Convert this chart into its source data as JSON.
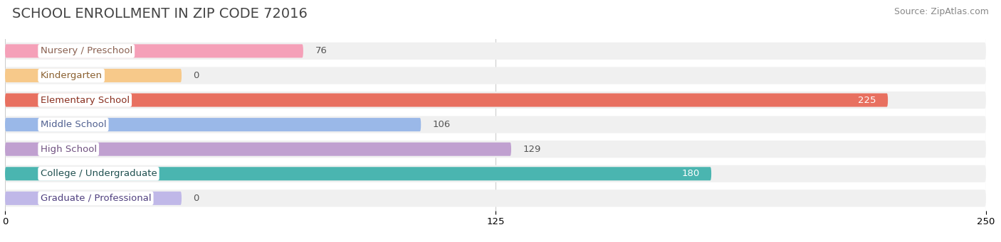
{
  "title": "SCHOOL ENROLLMENT IN ZIP CODE 72016",
  "source": "Source: ZipAtlas.com",
  "categories": [
    "Nursery / Preschool",
    "Kindergarten",
    "Elementary School",
    "Middle School",
    "High School",
    "College / Undergraduate",
    "Graduate / Professional"
  ],
  "values": [
    76,
    0,
    225,
    106,
    129,
    180,
    0
  ],
  "bar_colors": [
    "#f5a0b8",
    "#f7c98a",
    "#e87060",
    "#9ab8e8",
    "#c0a0d0",
    "#4ab5b0",
    "#c0b8e8"
  ],
  "label_text_colors": [
    "#8a6050",
    "#8a6030",
    "#8a3020",
    "#506090",
    "#705080",
    "#205050",
    "#504080"
  ],
  "value_inside": [
    false,
    false,
    true,
    false,
    false,
    true,
    false
  ],
  "xlim": [
    0,
    250
  ],
  "xticks": [
    0,
    125,
    250
  ],
  "title_fontsize": 14,
  "label_fontsize": 9.5,
  "value_fontsize": 9.5,
  "source_fontsize": 9,
  "bg_color": "#ffffff",
  "track_color": "#f0f0f0",
  "zero_bar_width": 45
}
